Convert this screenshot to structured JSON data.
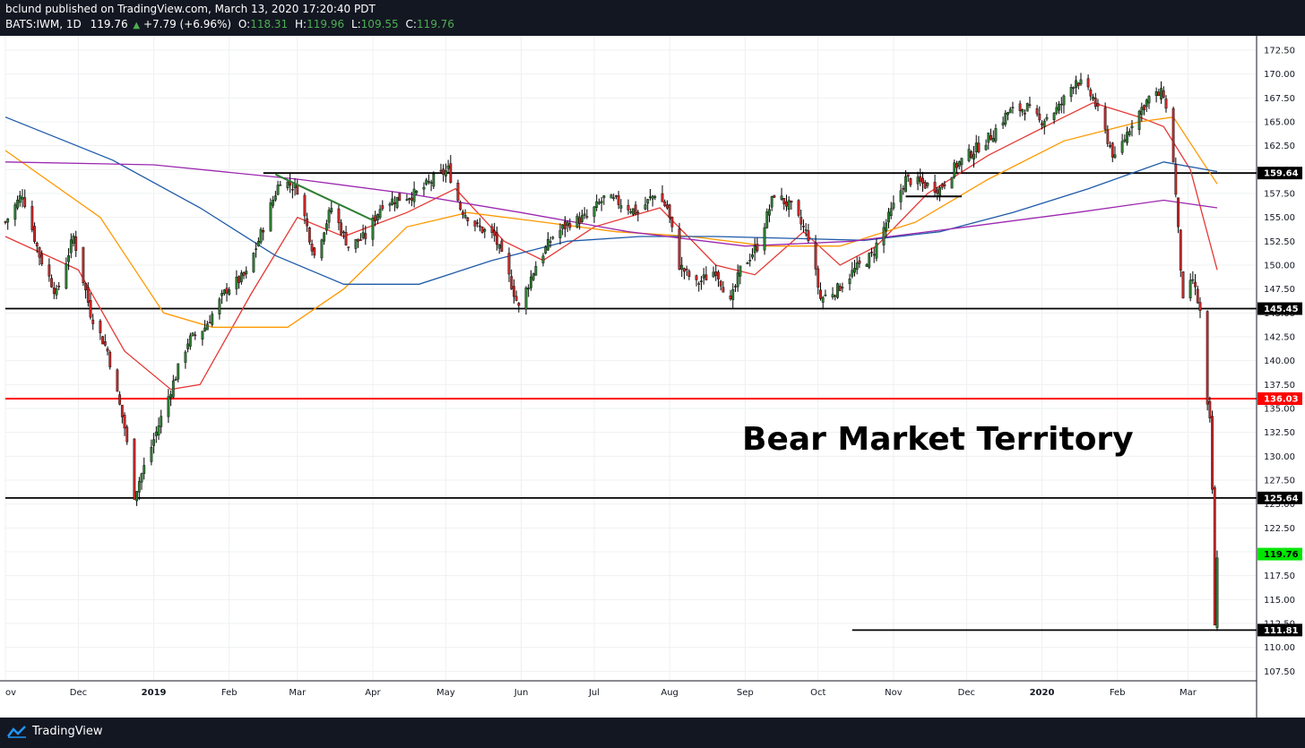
{
  "header": {
    "published": "bclund published on TradingView.com, March 13, 2020 17:20:40 PDT",
    "symbol": "BATS:IWM, 1D",
    "last": "119.76",
    "change": "+7.79 (+6.96%)",
    "o_label": "O:",
    "o_value": "118.31",
    "h_label": "H:",
    "h_value": "119.96",
    "l_label": "L:",
    "l_value": "109.55",
    "c_label": "C:",
    "c_value": "119.76"
  },
  "footer": {
    "brand": "TradingView",
    "logo_icon": "tradingview-logo-icon"
  },
  "colors": {
    "up": "#26a69a",
    "up_fill": "#2e7d32",
    "down": "#c62828",
    "ma_red": "#e53935",
    "ma_orange": "#ff9800",
    "ma_blue": "#1e5aa8",
    "ma_purple": "#9c27b0",
    "level_red": "#ff0000",
    "last_price": "#00e600",
    "trend": "#2e7d32"
  },
  "chart_data": {
    "type": "candlestick",
    "symbol": "BATS:IWM",
    "timeframe": "1D",
    "ylim": [
      106.5,
      174.0
    ],
    "y_ticks": [
      "107.50",
      "110.00",
      "112.50",
      "115.00",
      "117.50",
      "120.00",
      "122.50",
      "125.00",
      "127.50",
      "130.00",
      "132.50",
      "135.00",
      "137.50",
      "140.00",
      "142.50",
      "145.00",
      "147.50",
      "150.00",
      "152.50",
      "155.00",
      "157.50",
      "160.00",
      "162.50",
      "165.00",
      "167.50",
      "170.00",
      "172.50"
    ],
    "x_labels": [
      "ov",
      "Dec",
      "2019",
      "Feb",
      "Mar",
      "Apr",
      "May",
      "Jun",
      "Jul",
      "Aug",
      "Sep",
      "Oct",
      "Nov",
      "Dec",
      "2020",
      "Feb",
      "Mar"
    ],
    "x_label_dates": [
      "2018-11-01",
      "2018-12-01",
      "2019-01-01",
      "2019-02-01",
      "2019-03-01",
      "2019-04-01",
      "2019-05-01",
      "2019-06-01",
      "2019-07-01",
      "2019-08-01",
      "2019-09-01",
      "2019-10-01",
      "2019-11-01",
      "2019-12-01",
      "2020-01-01",
      "2020-02-01",
      "2020-03-01"
    ],
    "x_range": [
      "2018-11-01",
      "2020-03-27"
    ],
    "levels": [
      {
        "price": 159.64,
        "label": "159.64",
        "color": "#000000",
        "from": "2019-02-15"
      },
      {
        "price": 145.45,
        "label": "145.45",
        "color": "#000000",
        "from": "2018-11-01"
      },
      {
        "price": 136.03,
        "label": "136.03",
        "color": "#ff0000",
        "from": "2018-11-01"
      },
      {
        "price": 125.64,
        "label": "125.64",
        "color": "#000000",
        "from": "2018-11-01"
      },
      {
        "price": 111.81,
        "label": "111.81",
        "color": "#000000",
        "from": "2019-10-15"
      }
    ],
    "last_price": {
      "price": 119.76,
      "label": "119.76"
    },
    "annotation": "Bear Market Territory",
    "trendlines": [
      {
        "from": [
          "2019-02-20",
          159.5
        ],
        "to": [
          "2019-04-01",
          154.7
        ],
        "color": "#2e7d32"
      },
      {
        "from": [
          "2019-11-06",
          157.2
        ],
        "to": [
          "2019-11-29",
          157.2
        ],
        "color": "#000000"
      }
    ],
    "price_path": [
      [
        "2018-11-01",
        154.5
      ],
      [
        "2018-11-08",
        157.5
      ],
      [
        "2018-11-15",
        151.0
      ],
      [
        "2018-11-22",
        147.0
      ],
      [
        "2018-11-29",
        153.0
      ],
      [
        "2018-12-06",
        145.0
      ],
      [
        "2018-12-13",
        141.0
      ],
      [
        "2018-12-20",
        133.0
      ],
      [
        "2018-12-24",
        126.0
      ],
      [
        "2018-12-31",
        131.0
      ],
      [
        "2019-01-08",
        137.0
      ],
      [
        "2019-01-15",
        142.0
      ],
      [
        "2019-01-22",
        143.5
      ],
      [
        "2019-01-31",
        147.5
      ],
      [
        "2019-02-08",
        149.0
      ],
      [
        "2019-02-15",
        154.0
      ],
      [
        "2019-02-22",
        159.0
      ],
      [
        "2019-03-01",
        158.0
      ],
      [
        "2019-03-08",
        151.0
      ],
      [
        "2019-03-15",
        156.0
      ],
      [
        "2019-03-22",
        152.0
      ],
      [
        "2019-03-29",
        153.0
      ],
      [
        "2019-04-05",
        156.5
      ],
      [
        "2019-04-12",
        157.0
      ],
      [
        "2019-04-19",
        157.5
      ],
      [
        "2019-04-26",
        159.0
      ],
      [
        "2019-05-02",
        160.0
      ],
      [
        "2019-05-07",
        156.0
      ],
      [
        "2019-05-14",
        154.0
      ],
      [
        "2019-05-21",
        153.0
      ],
      [
        "2019-05-28",
        148.0
      ],
      [
        "2019-05-31",
        145.5
      ],
      [
        "2019-06-07",
        150.0
      ],
      [
        "2019-06-14",
        153.0
      ],
      [
        "2019-06-21",
        154.5
      ],
      [
        "2019-06-28",
        155.0
      ],
      [
        "2019-07-05",
        157.0
      ],
      [
        "2019-07-12",
        156.5
      ],
      [
        "2019-07-19",
        155.5
      ],
      [
        "2019-07-26",
        157.5
      ],
      [
        "2019-07-31",
        156.0
      ],
      [
        "2019-08-05",
        150.0
      ],
      [
        "2019-08-12",
        148.0
      ],
      [
        "2019-08-20",
        149.5
      ],
      [
        "2019-08-26",
        146.0
      ],
      [
        "2019-08-30",
        149.5
      ],
      [
        "2019-09-06",
        152.0
      ],
      [
        "2019-09-13",
        157.5
      ],
      [
        "2019-09-20",
        156.0
      ],
      [
        "2019-09-27",
        153.0
      ],
      [
        "2019-10-02",
        146.5
      ],
      [
        "2019-10-09",
        147.5
      ],
      [
        "2019-10-16",
        149.5
      ],
      [
        "2019-10-23",
        151.0
      ],
      [
        "2019-10-30",
        155.0
      ],
      [
        "2019-11-06",
        159.0
      ],
      [
        "2019-11-13",
        158.5
      ],
      [
        "2019-11-20",
        158.0
      ],
      [
        "2019-11-27",
        160.5
      ],
      [
        "2019-12-04",
        162.0
      ],
      [
        "2019-12-11",
        163.5
      ],
      [
        "2019-12-18",
        166.0
      ],
      [
        "2019-12-26",
        166.5
      ],
      [
        "2019-12-31",
        165.0
      ],
      [
        "2020-01-08",
        166.5
      ],
      [
        "2020-01-15",
        169.5
      ],
      [
        "2020-01-22",
        167.5
      ],
      [
        "2020-01-31",
        161.0
      ],
      [
        "2020-02-07",
        165.0
      ],
      [
        "2020-02-14",
        167.5
      ],
      [
        "2020-02-20",
        168.0
      ],
      [
        "2020-02-24",
        161.0
      ],
      [
        "2020-02-28",
        146.0
      ],
      [
        "2020-03-03",
        148.5
      ],
      [
        "2020-03-06",
        145.0
      ],
      [
        "2020-03-09",
        135.0
      ],
      [
        "2020-03-10",
        133.5
      ],
      [
        "2020-03-11",
        126.5
      ],
      [
        "2020-03-12",
        112.0
      ],
      [
        "2020-03-13",
        119.76
      ]
    ],
    "series": [
      {
        "name": "",
        "color": "#e53935",
        "values": [
          [
            "2018-11-01",
            153.0
          ],
          [
            "2018-12-01",
            149.5
          ],
          [
            "2018-12-20",
            141.0
          ],
          [
            "2019-01-08",
            137.0
          ],
          [
            "2019-01-20",
            137.5
          ],
          [
            "2019-02-10",
            147.0
          ],
          [
            "2019-03-01",
            155.0
          ],
          [
            "2019-03-20",
            153.0
          ],
          [
            "2019-04-15",
            155.5
          ],
          [
            "2019-05-05",
            158.0
          ],
          [
            "2019-05-25",
            152.5
          ],
          [
            "2019-06-10",
            150.5
          ],
          [
            "2019-07-01",
            154.0
          ],
          [
            "2019-07-28",
            156.0
          ],
          [
            "2019-08-20",
            150.0
          ],
          [
            "2019-09-05",
            149.0
          ],
          [
            "2019-09-25",
            153.5
          ],
          [
            "2019-10-10",
            150.0
          ],
          [
            "2019-10-25",
            152.0
          ],
          [
            "2019-11-15",
            157.5
          ],
          [
            "2019-12-10",
            161.5
          ],
          [
            "2020-01-10",
            165.5
          ],
          [
            "2020-01-22",
            167.0
          ],
          [
            "2020-02-10",
            165.5
          ],
          [
            "2020-02-20",
            164.5
          ],
          [
            "2020-03-02",
            160.0
          ],
          [
            "2020-03-13",
            149.5
          ]
        ]
      },
      {
        "name": "",
        "color": "#ff9800",
        "values": [
          [
            "2018-11-01",
            162.0
          ],
          [
            "2018-12-10",
            155.0
          ],
          [
            "2019-01-05",
            145.0
          ],
          [
            "2019-01-25",
            143.5
          ],
          [
            "2019-02-25",
            143.5
          ],
          [
            "2019-03-20",
            147.5
          ],
          [
            "2019-04-15",
            154.0
          ],
          [
            "2019-05-10",
            155.5
          ],
          [
            "2019-06-10",
            154.5
          ],
          [
            "2019-07-10",
            153.5
          ],
          [
            "2019-08-10",
            153.0
          ],
          [
            "2019-09-10",
            152.0
          ],
          [
            "2019-10-10",
            152.0
          ],
          [
            "2019-11-10",
            154.5
          ],
          [
            "2019-12-10",
            159.0
          ],
          [
            "2020-01-10",
            163.0
          ],
          [
            "2020-02-10",
            165.0
          ],
          [
            "2020-02-24",
            165.5
          ],
          [
            "2020-03-13",
            158.5
          ]
        ]
      },
      {
        "name": "",
        "color": "#1e5aa8",
        "values": [
          [
            "2018-11-01",
            165.5
          ],
          [
            "2018-12-15",
            161.0
          ],
          [
            "2019-01-20",
            156.0
          ],
          [
            "2019-02-20",
            151.0
          ],
          [
            "2019-03-20",
            148.0
          ],
          [
            "2019-04-20",
            148.0
          ],
          [
            "2019-05-20",
            150.5
          ],
          [
            "2019-06-20",
            152.5
          ],
          [
            "2019-07-20",
            153.0
          ],
          [
            "2019-08-20",
            153.0
          ],
          [
            "2019-09-20",
            152.8
          ],
          [
            "2019-10-20",
            152.6
          ],
          [
            "2019-11-20",
            153.5
          ],
          [
            "2019-12-20",
            155.5
          ],
          [
            "2020-01-20",
            158.0
          ],
          [
            "2020-02-20",
            160.8
          ],
          [
            "2020-03-13",
            159.8
          ]
        ]
      },
      {
        "name": "",
        "color": "#9c27b0",
        "values": [
          [
            "2018-11-01",
            160.8
          ],
          [
            "2019-01-01",
            160.5
          ],
          [
            "2019-03-01",
            159.0
          ],
          [
            "2019-04-15",
            157.5
          ],
          [
            "2019-06-01",
            155.5
          ],
          [
            "2019-07-15",
            153.5
          ],
          [
            "2019-09-01",
            152.0
          ],
          [
            "2019-10-15",
            152.5
          ],
          [
            "2019-12-01",
            154.0
          ],
          [
            "2020-01-15",
            155.5
          ],
          [
            "2020-02-20",
            156.8
          ],
          [
            "2020-03-13",
            156.0
          ]
        ]
      }
    ]
  }
}
